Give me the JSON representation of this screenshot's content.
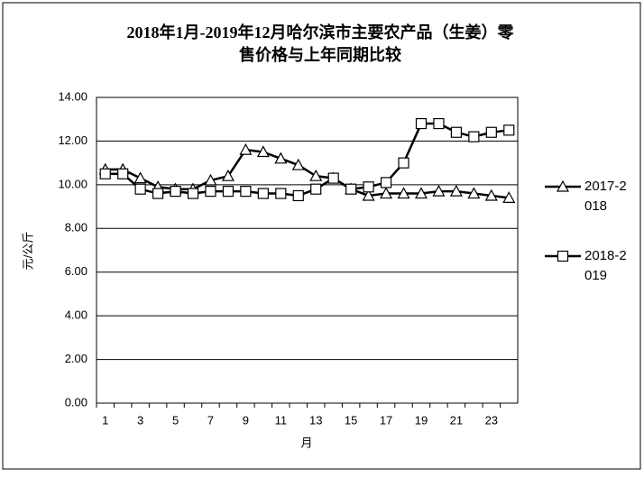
{
  "chart_data": {
    "type": "line",
    "title": [
      "2018年1月-2019年12月哈尔滨市主要农产品（生姜）零",
      "售价格与上年同期比较"
    ],
    "x_label": "月",
    "y_label": "元/公斤",
    "categories": [
      "1",
      null,
      "3",
      null,
      "5",
      null,
      "7",
      null,
      "9",
      null,
      "11",
      null,
      "13",
      null,
      "15",
      null,
      "17",
      null,
      "19",
      null,
      "21",
      null,
      "23",
      null
    ],
    "series": [
      {
        "name": "2017-2018",
        "color": "#000000",
        "marker": "triangle",
        "values": [
          10.7,
          10.7,
          10.3,
          9.9,
          9.8,
          9.8,
          10.2,
          10.4,
          11.6,
          11.5,
          11.2,
          10.9,
          10.4,
          10.3,
          9.8,
          9.5,
          9.6,
          9.6,
          9.6,
          9.7,
          9.7,
          9.6,
          9.5,
          9.4
        ]
      },
      {
        "name": "2018-2019",
        "color": "#000000",
        "marker": "square",
        "values": [
          10.5,
          10.5,
          9.8,
          9.6,
          9.7,
          9.6,
          9.7,
          9.7,
          9.7,
          9.6,
          9.6,
          9.5,
          9.8,
          10.3,
          9.8,
          9.9,
          10.1,
          11.0,
          12.8,
          12.8,
          12.4,
          12.2,
          12.4,
          12.5
        ]
      }
    ],
    "ylim": [
      0,
      14
    ],
    "yticks": [
      {
        "value": 0,
        "label": "0.00"
      },
      {
        "value": 2,
        "label": "2.00"
      },
      {
        "value": 4,
        "label": "4.00"
      },
      {
        "value": 6,
        "label": "6.00"
      },
      {
        "value": 8,
        "label": "8.00"
      },
      {
        "value": 10,
        "label": "10.00"
      },
      {
        "value": 12,
        "label": "12.00"
      },
      {
        "value": 14,
        "label": "14.00"
      }
    ],
    "grid": true,
    "legend": "right"
  }
}
